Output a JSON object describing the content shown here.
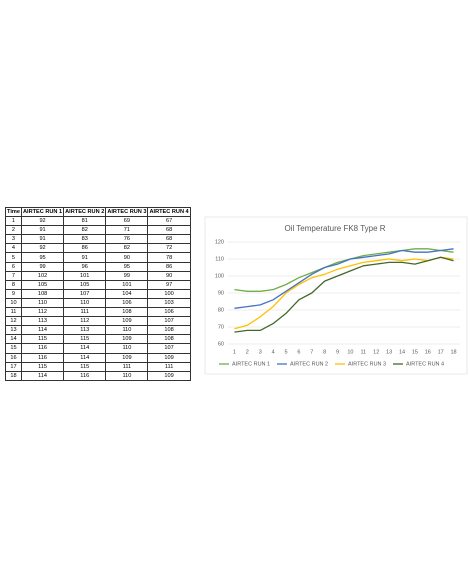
{
  "table": {
    "columns": [
      "Time",
      "AIRTEC RUN 1",
      "AIRTEC RUN 2",
      "AIRTEC RUN 3",
      "AIRTEC RUN 4"
    ],
    "rows": [
      [
        1,
        92,
        81,
        69,
        67
      ],
      [
        2,
        91,
        82,
        71,
        68
      ],
      [
        3,
        91,
        83,
        76,
        68
      ],
      [
        4,
        92,
        86,
        82,
        72
      ],
      [
        5,
        95,
        91,
        90,
        78
      ],
      [
        6,
        99,
        96,
        95,
        86
      ],
      [
        7,
        102,
        101,
        99,
        90
      ],
      [
        8,
        105,
        105,
        101,
        97
      ],
      [
        9,
        108,
        107,
        104,
        100
      ],
      [
        10,
        110,
        110,
        106,
        103
      ],
      [
        11,
        112,
        111,
        108,
        106
      ],
      [
        12,
        113,
        112,
        109,
        107
      ],
      [
        13,
        114,
        113,
        110,
        108
      ],
      [
        14,
        115,
        115,
        109,
        108
      ],
      [
        15,
        116,
        114,
        110,
        107
      ],
      [
        16,
        116,
        114,
        109,
        109
      ],
      [
        17,
        115,
        115,
        111,
        111
      ],
      [
        18,
        114,
        116,
        110,
        109
      ]
    ]
  },
  "chart_data": {
    "type": "line",
    "title": "Oil Temperature FK8 Type R",
    "categories": [
      "1",
      "2",
      "3",
      "4",
      "5",
      "6",
      "7",
      "8",
      "9",
      "10",
      "11",
      "12",
      "13",
      "14",
      "15",
      "16",
      "17",
      "18"
    ],
    "series": [
      {
        "name": "AIRTEC RUN 1",
        "color": "#70ad47",
        "values": [
          92,
          91,
          91,
          92,
          95,
          99,
          102,
          105,
          108,
          110,
          112,
          113,
          114,
          115,
          116,
          116,
          115,
          114
        ]
      },
      {
        "name": "AIRTEC RUN 2",
        "color": "#4472c4",
        "values": [
          81,
          82,
          83,
          86,
          91,
          96,
          101,
          105,
          107,
          110,
          111,
          112,
          113,
          115,
          114,
          114,
          115,
          116
        ]
      },
      {
        "name": "AIRTEC RUN 3",
        "color": "#ffc000",
        "values": [
          69,
          71,
          76,
          82,
          90,
          95,
          99,
          101,
          104,
          106,
          108,
          109,
          110,
          109,
          110,
          109,
          111,
          110
        ]
      },
      {
        "name": "AIRTEC RUN 4",
        "color": "#43682b",
        "values": [
          67,
          68,
          68,
          72,
          78,
          86,
          90,
          97,
          100,
          103,
          106,
          107,
          108,
          108,
          107,
          109,
          111,
          109
        ]
      }
    ],
    "ylim": [
      60,
      120
    ],
    "yticks": [
      60,
      70,
      80,
      90,
      100,
      110,
      120
    ],
    "grid": true,
    "legend": "bottom"
  }
}
